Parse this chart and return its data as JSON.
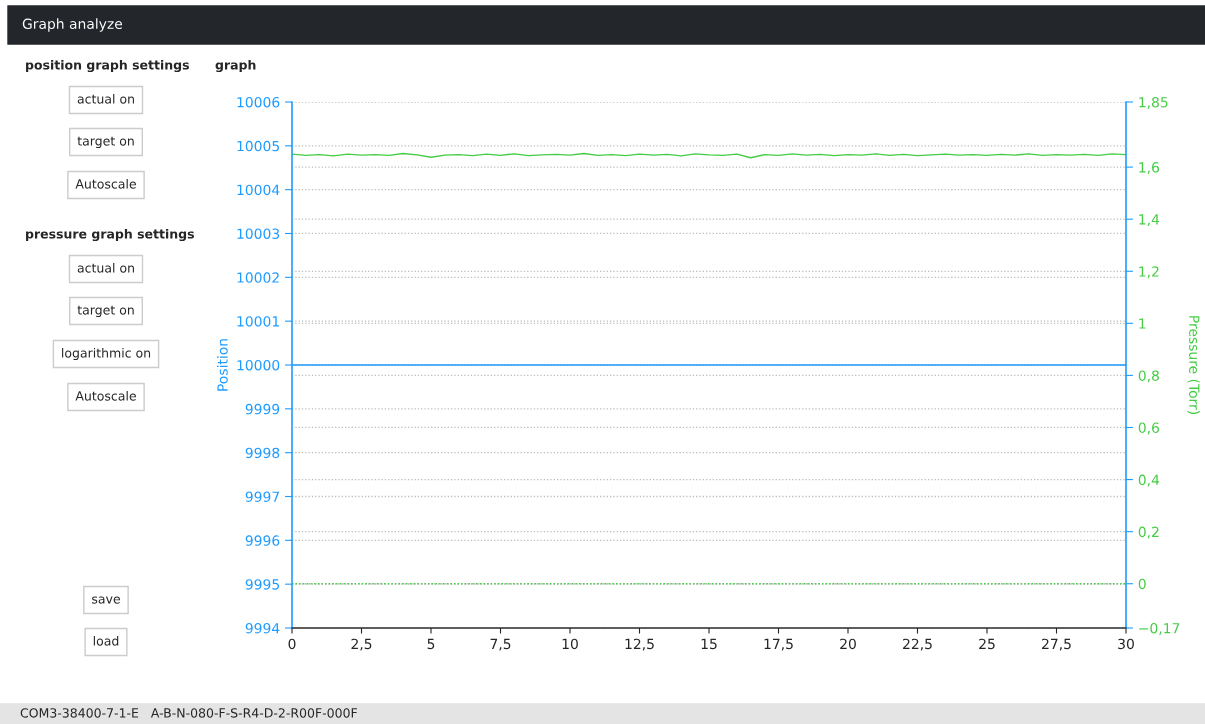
{
  "chart_data": {
    "type": "line",
    "title": "Graph analyze",
    "subtitle": "graph",
    "ylabel": "Position",
    "y2label": "Pressure (Torr)",
    "xlim": [
      0,
      30
    ],
    "xticks": [
      0,
      {
        "value": 2.5,
        "label": "2,5"
      },
      5,
      {
        "value": 7.5,
        "label": "7,5"
      },
      10,
      {
        "value": 12.5,
        "label": "12,5"
      },
      15,
      {
        "value": 17.5,
        "label": "17,5"
      },
      20,
      {
        "value": 22.5,
        "label": "22,5"
      },
      25,
      {
        "value": 27.5,
        "label": "27,5"
      },
      30
    ],
    "ylim": [
      9994,
      10006
    ],
    "yticks": [
      9994,
      9995,
      9996,
      9997,
      9998,
      9999,
      10000,
      10001,
      10002,
      10003,
      10004,
      10005,
      10006
    ],
    "y2lim": [
      -0.17,
      1.85
    ],
    "y2ticks": [
      {
        "value": -0.17,
        "label": "−0,17"
      },
      0,
      {
        "value": 0.2,
        "label": "0,2"
      },
      {
        "value": 0.4,
        "label": "0,4"
      },
      {
        "value": 0.6,
        "label": "0,6"
      },
      {
        "value": 0.8,
        "label": "0,8"
      },
      1,
      {
        "value": 1.2,
        "label": "1,2"
      },
      {
        "value": 1.4,
        "label": "1,4"
      },
      {
        "value": 1.6,
        "label": "1,6"
      },
      {
        "value": 1.85,
        "label": "1,85"
      }
    ],
    "grid": "y",
    "legend": false,
    "marker": "none",
    "line_style": "solid",
    "ref_lines": [
      {
        "axis": "y2",
        "value": 0,
        "color": "#44cc44",
        "line_style": "dotted"
      }
    ],
    "series": [
      {
        "color": "#1e9bff",
        "x": [
          0,
          30
        ],
        "values": [
          10000,
          10000
        ]
      },
      {
        "color": "#44cc44",
        "axis": "y2",
        "x": [
          0,
          0.5,
          1,
          1.5,
          2,
          2.5,
          3,
          3.5,
          4,
          4.5,
          5,
          5.5,
          6,
          6.5,
          7,
          7.5,
          8,
          8.5,
          9,
          9.5,
          10,
          10.5,
          11,
          11.5,
          12,
          12.5,
          13,
          13.5,
          14,
          14.5,
          15,
          15.5,
          16,
          16.5,
          17,
          17.5,
          18,
          18.5,
          19,
          19.5,
          20,
          20.5,
          21,
          21.5,
          22,
          22.5,
          23,
          23.5,
          24,
          24.5,
          25,
          25.5,
          26,
          26.5,
          27,
          27.5,
          28,
          28.5,
          29,
          29.5,
          30
        ],
        "values": [
          1.65,
          1.645,
          1.648,
          1.643,
          1.65,
          1.646,
          1.648,
          1.645,
          1.652,
          1.647,
          1.638,
          1.646,
          1.648,
          1.644,
          1.65,
          1.645,
          1.651,
          1.644,
          1.647,
          1.649,
          1.646,
          1.652,
          1.645,
          1.648,
          1.644,
          1.65,
          1.646,
          1.649,
          1.643,
          1.651,
          1.647,
          1.645,
          1.65,
          1.636,
          1.648,
          1.645,
          1.651,
          1.646,
          1.649,
          1.644,
          1.648,
          1.646,
          1.651,
          1.645,
          1.649,
          1.644,
          1.647,
          1.65,
          1.646,
          1.648,
          1.645,
          1.649,
          1.646,
          1.651,
          1.645,
          1.648,
          1.646,
          1.649,
          1.645,
          1.651,
          1.648
        ]
      }
    ],
    "annotations": [
      "position graph settings",
      "actual on",
      "target on",
      "Autoscale",
      "pressure graph settings",
      "actual on",
      "target on",
      "logarithmic on",
      "Autoscale",
      "save",
      "load",
      "COM3-38400-7-1-E   A-B-N-080-F-S-R4-D-2-R00F-000F"
    ]
  }
}
